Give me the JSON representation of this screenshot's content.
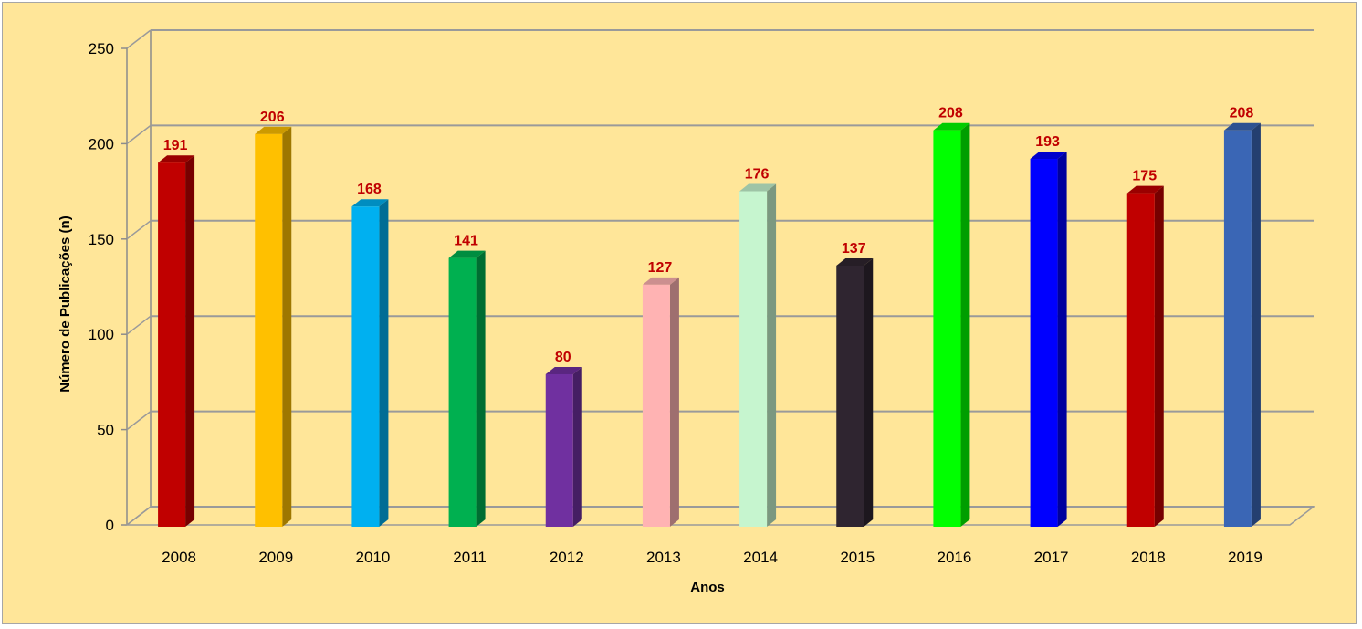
{
  "chart_data": {
    "type": "bar",
    "categories": [
      "2008",
      "2009",
      "2010",
      "2011",
      "2012",
      "2013",
      "2014",
      "2015",
      "2016",
      "2017",
      "2018",
      "2019"
    ],
    "values": [
      191,
      206,
      168,
      141,
      80,
      127,
      176,
      137,
      208,
      193,
      175,
      208
    ],
    "bar_colors": [
      "#c00000",
      "#ffc000",
      "#00b0f0",
      "#00b050",
      "#7030a0",
      "#ffb3b3",
      "#c6f5cf",
      "#2f2530",
      "#00ff00",
      "#0000ff",
      "#c00000",
      "#3a66b5"
    ],
    "title": "",
    "xlabel": "Anos",
    "ylabel": "Número de Publicações  (n)",
    "ylim": [
      0,
      250
    ],
    "yticks": [
      0,
      50,
      100,
      150,
      200,
      250
    ],
    "grid": true,
    "legend": false,
    "style": "3d-column",
    "background_color": "#ffe699",
    "label_color": "#c00000"
  }
}
